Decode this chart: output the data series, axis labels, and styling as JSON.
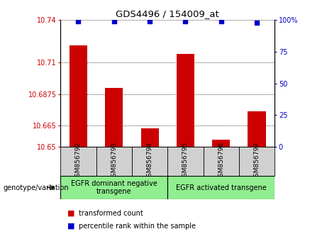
{
  "title": "GDS4496 / 154009_at",
  "categories": [
    "GSM856792",
    "GSM856793",
    "GSM856794",
    "GSM856795",
    "GSM856796",
    "GSM856797"
  ],
  "bar_values": [
    10.722,
    10.692,
    10.663,
    10.716,
    10.655,
    10.675
  ],
  "percentile_values": [
    99,
    99,
    99,
    99,
    99,
    98
  ],
  "bar_color": "#cc0000",
  "percentile_color": "#0000cc",
  "ylim_left": [
    10.65,
    10.74
  ],
  "yticks_left": [
    10.65,
    10.665,
    10.6875,
    10.71,
    10.74
  ],
  "ytick_labels_left": [
    "10.65",
    "10.665",
    "10.6875",
    "10.71",
    "10.74"
  ],
  "ylim_right": [
    0,
    100
  ],
  "yticks_right": [
    0,
    25,
    50,
    75,
    100
  ],
  "ytick_labels_right": [
    "0",
    "25",
    "50",
    "75",
    "100%"
  ],
  "group1_label": "EGFR dominant negative\ntransgene",
  "group2_label": "EGFR activated transgene",
  "group1_indices": [
    0,
    1,
    2
  ],
  "group2_indices": [
    3,
    4,
    5
  ],
  "genotype_label": "genotype/variation",
  "legend_bar_label": "transformed count",
  "legend_dot_label": "percentile rank within the sample",
  "background_color": "#ffffff",
  "plot_bg_color": "#ffffff",
  "tick_box_color": "#d0d0d0",
  "group_bg_color": "#90EE90",
  "tick_label_color_left": "#cc0000",
  "tick_label_color_right": "#0000cc",
  "bar_width": 0.5
}
